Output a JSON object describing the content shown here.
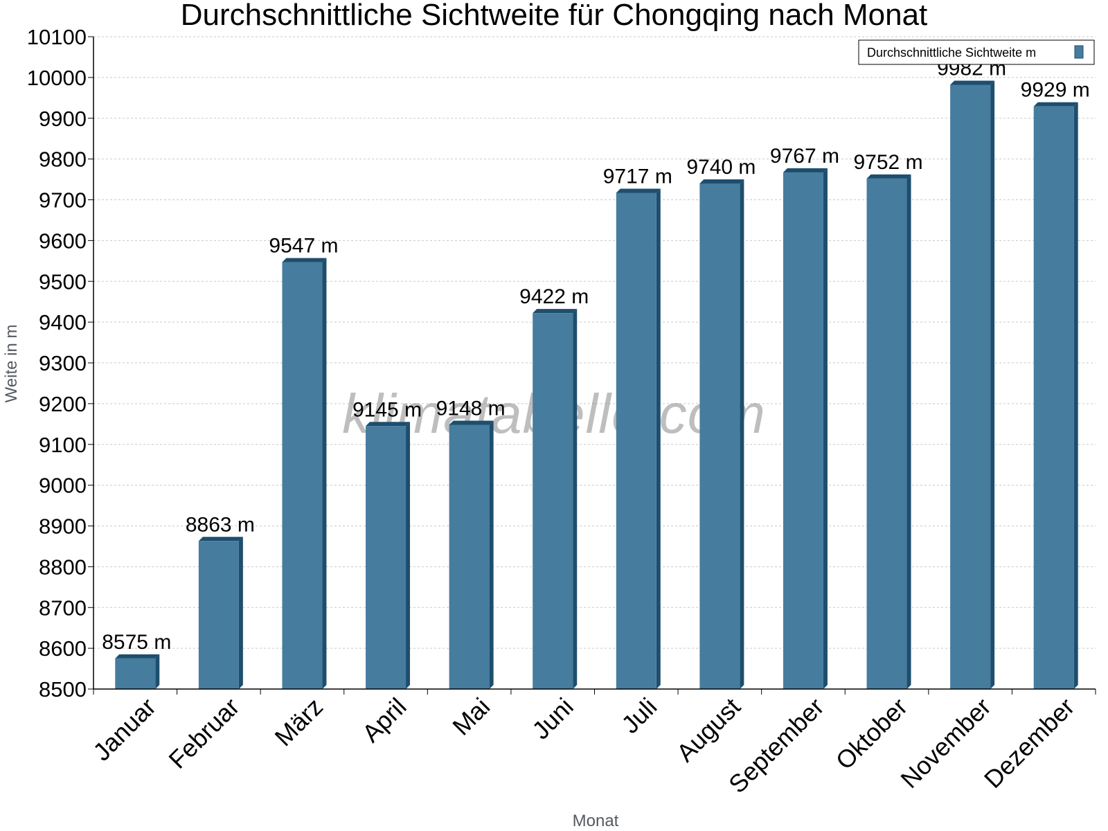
{
  "chart_data": {
    "type": "bar",
    "title": "Durchschnittliche Sichtweite für Chongqing nach Monat",
    "xlabel": "Monat",
    "ylabel": "Weite in m",
    "categories": [
      "Januar",
      "Februar",
      "März",
      "April",
      "Mai",
      "Juni",
      "Juli",
      "August",
      "September",
      "Oktober",
      "November",
      "Dezember"
    ],
    "series": [
      {
        "name": "Durchschnittliche Sichtweite m",
        "values": [
          8575,
          8863,
          9547,
          9145,
          9148,
          9422,
          9717,
          9740,
          9767,
          9752,
          9982,
          9929
        ],
        "labels": [
          "8575 m",
          "8863 m",
          "9547 m",
          "9145 m",
          "9148 m",
          "9422 m",
          "9717 m",
          "9740 m",
          "9767 m",
          "9752 m",
          "9982 m",
          "9929 m"
        ],
        "color": "#467c9e",
        "edge_color": "#1d4e6e"
      }
    ],
    "ylim": [
      8500,
      10100
    ],
    "ytick_step": 100,
    "grid": true,
    "legend": "top-right"
  },
  "watermark": "klimatabelle.com",
  "colors": {
    "grid": "#c8c8c8",
    "axis": "#000000",
    "bar": "#467c9e",
    "bar_edge": "#1d4e6e"
  }
}
